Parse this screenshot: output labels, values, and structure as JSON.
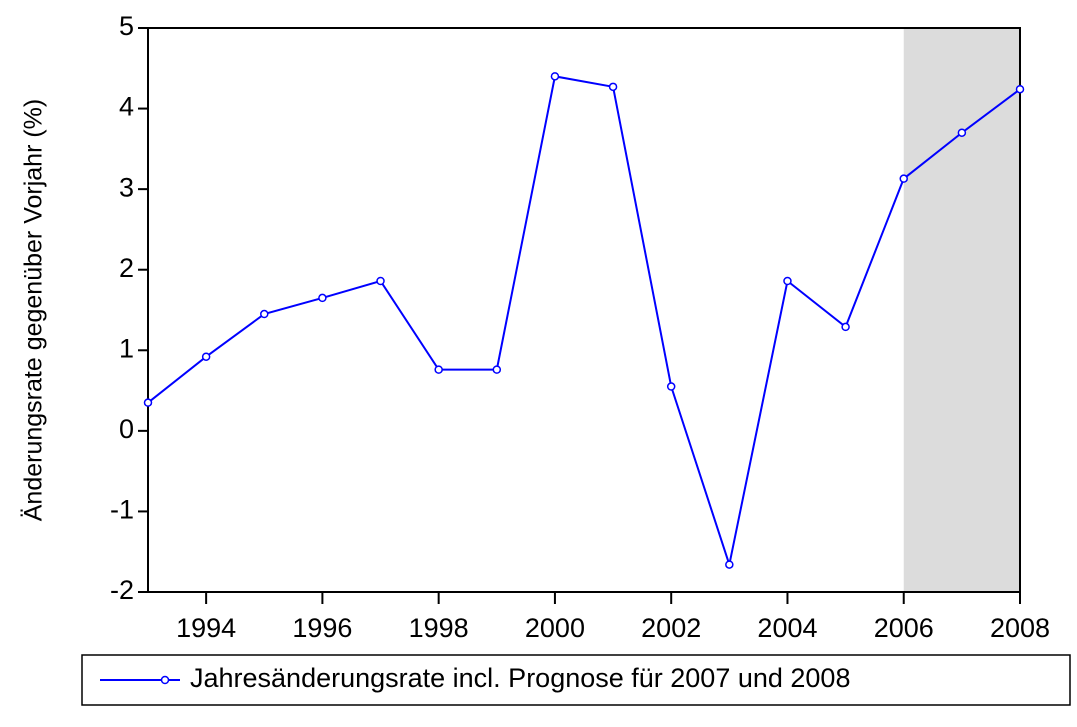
{
  "chart_data": {
    "type": "line",
    "y_label": "Änderungsrate gegenüber Vorjahr (%)",
    "x": [
      1993,
      1994,
      1995,
      1996,
      1997,
      1998,
      1999,
      2000,
      2001,
      2002,
      2003,
      2004,
      2005,
      2006,
      2007,
      2008
    ],
    "series": [
      {
        "name": "Jahresänderungsrate incl. Prognose für 2007 und 2008",
        "color": "#0000ff",
        "values": [
          0.35,
          0.92,
          1.45,
          1.65,
          1.86,
          0.76,
          0.76,
          4.4,
          4.27,
          0.55,
          -1.66,
          1.86,
          1.29,
          3.13,
          3.7,
          4.24
        ]
      }
    ],
    "xlim": [
      1993,
      2008
    ],
    "xticks": [
      1994,
      1996,
      1998,
      2000,
      2002,
      2004,
      2006,
      2008
    ],
    "ylim": [
      -2,
      5
    ],
    "yticks": [
      -2,
      -1,
      0,
      1,
      2,
      3,
      4,
      5
    ],
    "shade": [
      2006,
      2008
    ],
    "shade_color": "#dcdcdc",
    "legend": "bottom"
  }
}
